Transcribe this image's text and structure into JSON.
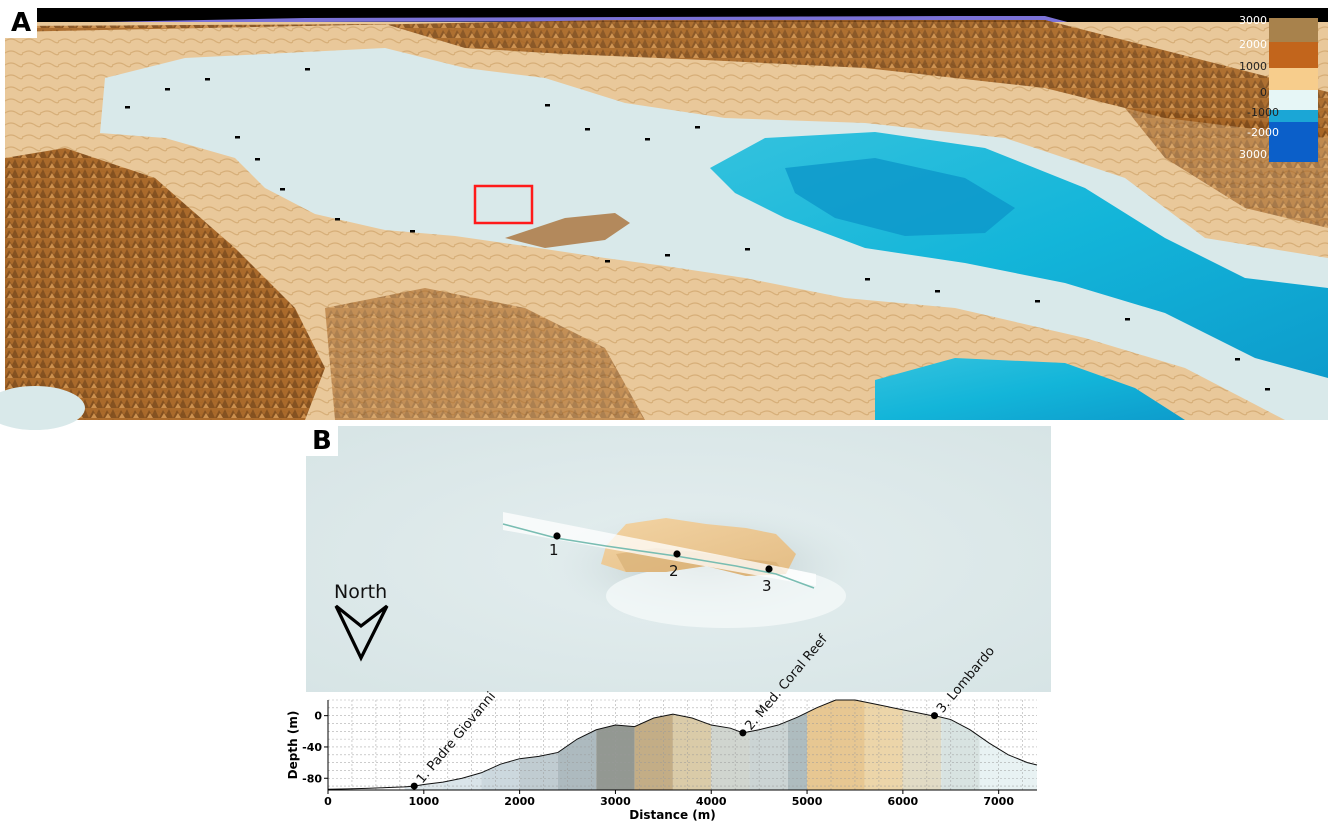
{
  "panel_a": {
    "label": "A",
    "colorbar": {
      "ticks": [
        "3000",
        "2000",
        "1000",
        "0",
        "-1000",
        "-2000",
        "3000"
      ],
      "colors": [
        "#a8824c",
        "#c2651c",
        "#f7cd8c",
        "#e6f6f6",
        "#1ba6d6",
        "#0b5fc9"
      ]
    },
    "colors": {
      "sky": "#000000",
      "sea_rim": "#7b72d6",
      "land": "#e9c89a",
      "mountain": "#a3601f",
      "shelf_sea": "#d9e9ea",
      "deep_sea": "#13b5d9",
      "abyss": "#0c96c9",
      "highlight_box": "#ff1a1a"
    }
  },
  "panel_b": {
    "label": "B",
    "north_label": "North",
    "stations": [
      "1",
      "2",
      "3"
    ]
  },
  "chart_data": {
    "type": "area",
    "xlabel": "Distance (m)",
    "ylabel": "Depth (m)",
    "xlim": [
      0,
      7400
    ],
    "ylim": [
      -95,
      20
    ],
    "xticks": [
      0,
      1000,
      2000,
      3000,
      4000,
      5000,
      6000,
      7000
    ],
    "yticks": [
      0,
      -40,
      -80
    ],
    "grid": true,
    "x": [
      0,
      200,
      400,
      600,
      800,
      900,
      1000,
      1200,
      1400,
      1600,
      1800,
      2000,
      2200,
      2400,
      2600,
      2800,
      3000,
      3200,
      3400,
      3600,
      3800,
      4000,
      4200,
      4330,
      4500,
      4700,
      4900,
      5100,
      5300,
      5500,
      5700,
      5900,
      6100,
      6300,
      6330,
      6500,
      6700,
      6900,
      7100,
      7300,
      7400
    ],
    "y": [
      -94,
      -93.5,
      -93,
      -92,
      -91,
      -90,
      -88,
      -85,
      -80,
      -73,
      -62,
      -55,
      -52,
      -47,
      -30,
      -18,
      -12,
      -14,
      -3,
      2,
      -3,
      -12,
      -16,
      -22,
      -18,
      -12,
      -2,
      10,
      20,
      20,
      15,
      10,
      5,
      0,
      0,
      -5,
      -18,
      -35,
      -50,
      -60,
      -63
    ],
    "annotations": [
      {
        "label": "1. Padre Giovanni",
        "x": 900,
        "y": -90
      },
      {
        "label": "2. Med. Coral Reef",
        "x": 4330,
        "y": -22
      },
      {
        "label": "3. Lombardo",
        "x": 6330,
        "y": 0
      }
    ],
    "bands": [
      {
        "x0": 800,
        "x1": 1200,
        "color": "#dce6ea"
      },
      {
        "x0": 1200,
        "x1": 1600,
        "color": "#d7e3e8"
      },
      {
        "x0": 1600,
        "x1": 2000,
        "color": "#c9d6dc"
      },
      {
        "x0": 2000,
        "x1": 2400,
        "color": "#bdc9cf"
      },
      {
        "x0": 2400,
        "x1": 2800,
        "color": "#a9b6bc"
      },
      {
        "x0": 2800,
        "x1": 3200,
        "color": "#8d928c"
      },
      {
        "x0": 3200,
        "x1": 3600,
        "color": "#c0a97f"
      },
      {
        "x0": 3600,
        "x1": 4000,
        "color": "#d8c8a3"
      },
      {
        "x0": 4000,
        "x1": 4400,
        "color": "#cdd3cc"
      },
      {
        "x0": 4400,
        "x1": 4800,
        "color": "#c8d2d2"
      },
      {
        "x0": 4800,
        "x1": 5000,
        "color": "#aab8bc"
      },
      {
        "x0": 5000,
        "x1": 5600,
        "color": "#e6c48c"
      },
      {
        "x0": 5600,
        "x1": 6000,
        "color": "#ebd3a4"
      },
      {
        "x0": 6000,
        "x1": 6400,
        "color": "#dfd9c2"
      },
      {
        "x0": 6400,
        "x1": 6800,
        "color": "#d6e1df"
      },
      {
        "x0": 6800,
        "x1": 7400,
        "color": "#e7f1f2"
      }
    ]
  }
}
